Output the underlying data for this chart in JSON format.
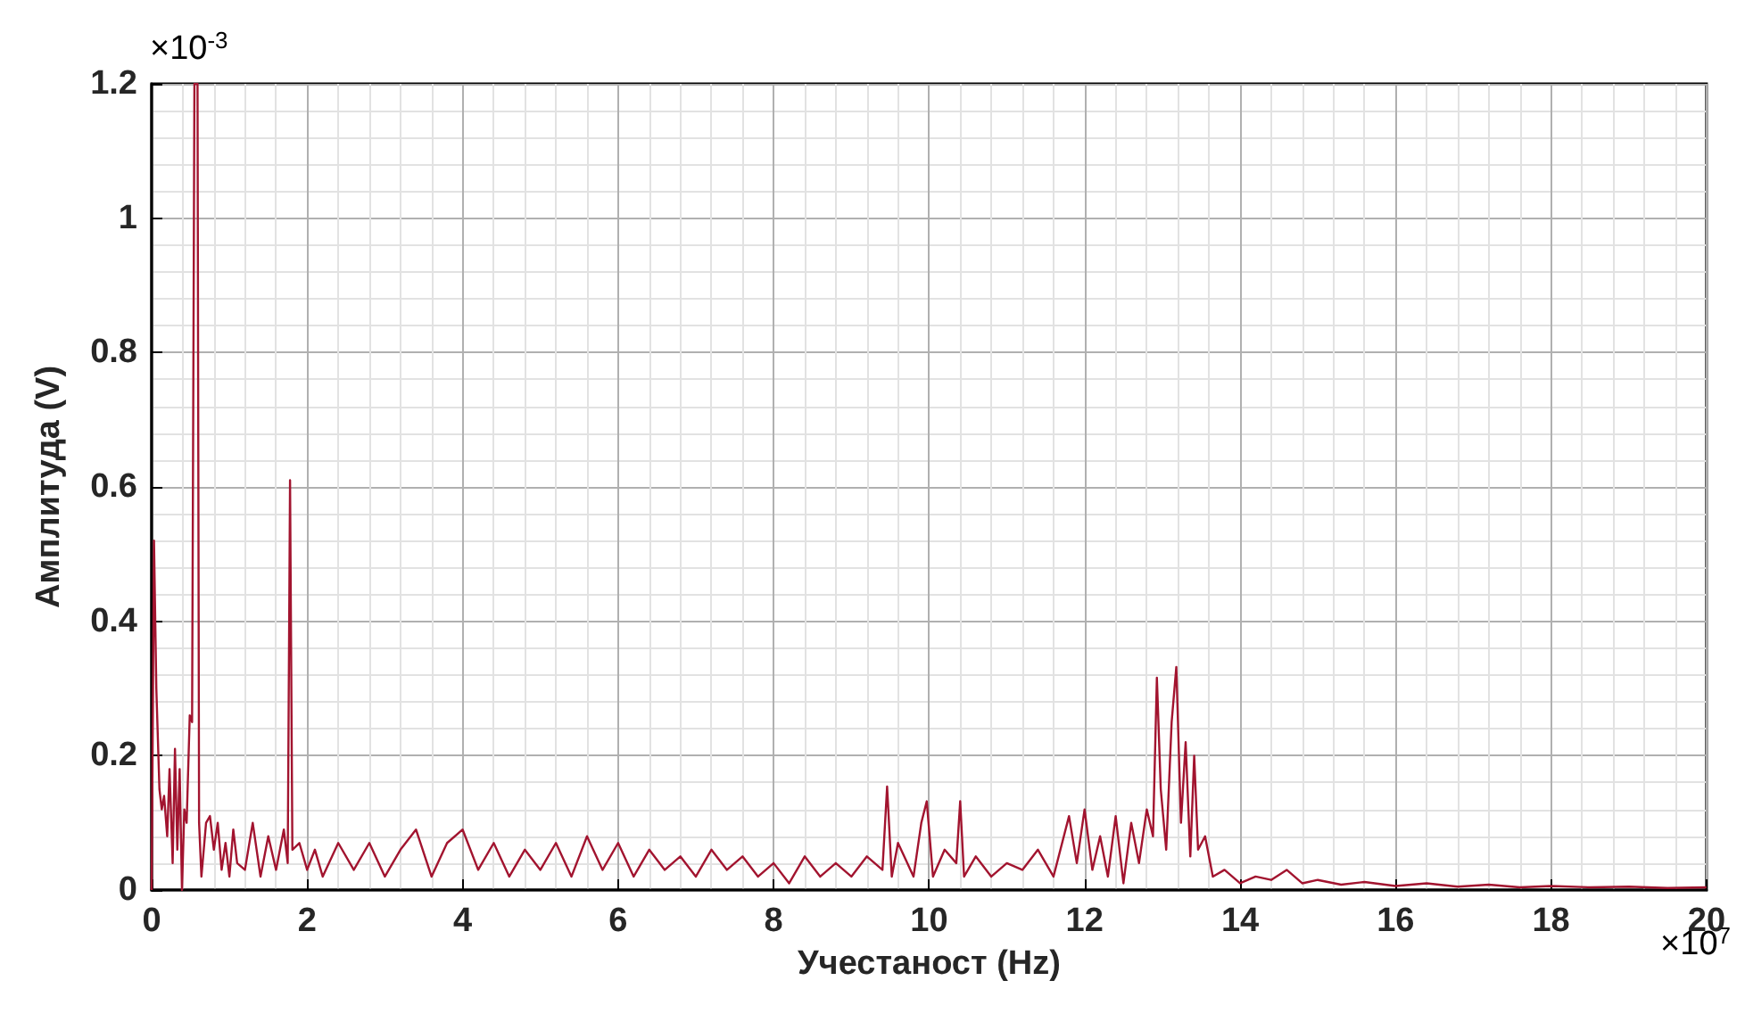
{
  "chart_data": {
    "type": "line",
    "xlabel": "Учестаност (Hz)",
    "ylabel": "Амплитуда (V)",
    "annotations": [
      "×10$^{-3}$",
      "×10$^{7}$"
    ],
    "xlim": [
      0,
      20
    ],
    "ylim": [
      0,
      1.2
    ],
    "xticks": [
      0,
      2,
      4,
      6,
      8,
      10,
      12,
      14,
      16,
      18,
      20
    ],
    "yticks": [
      0,
      0.2,
      0.4,
      0.6,
      0.8,
      1,
      1.2
    ],
    "grid": true,
    "marker": "none",
    "line_style": "solid",
    "series": [
      {
        "color": "#a2142f",
        "x": [
          0,
          0.03,
          0.06,
          0.1,
          0.13,
          0.16,
          0.2,
          0.23,
          0.27,
          0.3,
          0.33,
          0.36,
          0.39,
          0.42,
          0.45,
          0.49,
          0.52,
          0.55,
          0.57,
          0.59,
          0.61,
          0.64,
          0.7,
          0.75,
          0.8,
          0.85,
          0.9,
          0.95,
          1.0,
          1.05,
          1.1,
          1.2,
          1.3,
          1.4,
          1.5,
          1.6,
          1.7,
          1.75,
          1.78,
          1.81,
          1.9,
          2,
          2.1,
          2.2,
          2.4,
          2.6,
          2.8,
          3,
          3.2,
          3.4,
          3.6,
          3.8,
          4,
          4.2,
          4.4,
          4.6,
          4.8,
          5,
          5.2,
          5.4,
          5.6,
          5.8,
          6,
          6.2,
          6.4,
          6.6,
          6.8,
          7,
          7.2,
          7.4,
          7.6,
          7.8,
          8,
          8.2,
          8.4,
          8.6,
          8.8,
          9,
          9.2,
          9.4,
          9.46,
          9.52,
          9.6,
          9.8,
          9.9,
          9.97,
          10.05,
          10.2,
          10.35,
          10.4,
          10.45,
          10.6,
          10.8,
          11,
          11.2,
          11.4,
          11.6,
          11.8,
          11.9,
          12,
          12.1,
          12.2,
          12.3,
          12.4,
          12.5,
          12.6,
          12.7,
          12.8,
          12.88,
          12.93,
          12.98,
          13.05,
          13.12,
          13.18,
          13.24,
          13.3,
          13.36,
          13.41,
          13.46,
          13.55,
          13.65,
          13.8,
          14,
          14.2,
          14.4,
          14.6,
          14.8,
          15,
          15.3,
          15.6,
          16,
          16.4,
          16.8,
          17.2,
          17.6,
          18,
          18.5,
          19,
          19.5,
          20
        ],
        "values": [
          0,
          0.52,
          0.3,
          0.15,
          0.12,
          0.14,
          0.08,
          0.18,
          0.04,
          0.21,
          0.06,
          0.18,
          0.0,
          0.12,
          0.1,
          0.26,
          0.25,
          1.2,
          1.2,
          1.2,
          0.1,
          0.02,
          0.1,
          0.11,
          0.06,
          0.1,
          0.03,
          0.07,
          0.02,
          0.09,
          0.04,
          0.03,
          0.1,
          0.02,
          0.08,
          0.03,
          0.09,
          0.04,
          0.61,
          0.06,
          0.07,
          0.03,
          0.06,
          0.02,
          0.07,
          0.03,
          0.07,
          0.02,
          0.06,
          0.09,
          0.02,
          0.07,
          0.09,
          0.03,
          0.07,
          0.02,
          0.06,
          0.03,
          0.07,
          0.02,
          0.08,
          0.03,
          0.07,
          0.02,
          0.06,
          0.03,
          0.05,
          0.02,
          0.06,
          0.03,
          0.05,
          0.02,
          0.04,
          0.01,
          0.05,
          0.02,
          0.04,
          0.02,
          0.05,
          0.03,
          0.154,
          0.02,
          0.07,
          0.02,
          0.1,
          0.132,
          0.02,
          0.06,
          0.04,
          0.132,
          0.02,
          0.05,
          0.02,
          0.04,
          0.03,
          0.06,
          0.02,
          0.11,
          0.04,
          0.12,
          0.03,
          0.08,
          0.02,
          0.11,
          0.01,
          0.1,
          0.04,
          0.12,
          0.08,
          0.316,
          0.15,
          0.06,
          0.25,
          0.332,
          0.1,
          0.22,
          0.05,
          0.2,
          0.06,
          0.08,
          0.02,
          0.03,
          0.01,
          0.02,
          0.015,
          0.03,
          0.01,
          0.015,
          0.008,
          0.012,
          0.006,
          0.01,
          0.005,
          0.008,
          0.004,
          0.006,
          0.004,
          0.005,
          0.003,
          0.004
        ]
      }
    ]
  }
}
